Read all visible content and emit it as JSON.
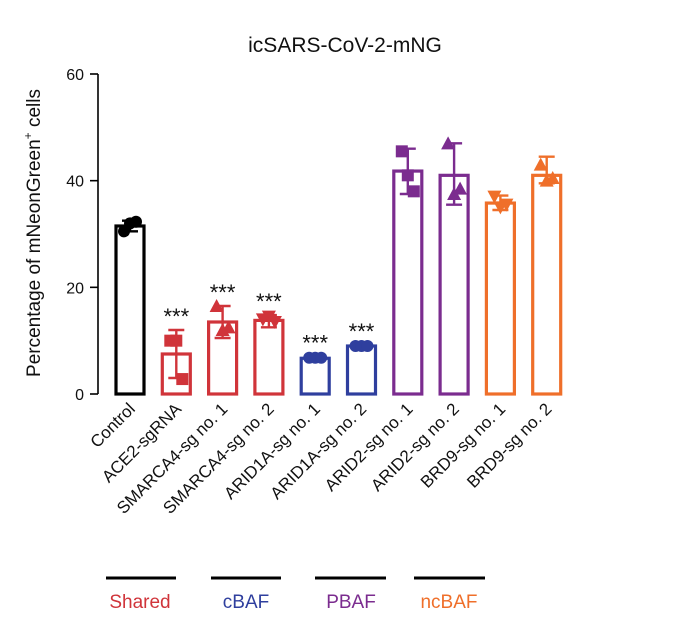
{
  "chart_data": {
    "type": "bar",
    "title": "icSARS-CoV-2-mNG",
    "ylabel": "Percentage of mNeonGreen",
    "ylabel_superscript": "+",
    "ylabel_suffix": " cells",
    "xlabel": "",
    "ylim": [
      0,
      60
    ],
    "yticks": [
      0,
      20,
      40,
      60
    ],
    "colors": {
      "black": "#000000",
      "red": "#d0343a",
      "blue": "#2f3f9e",
      "purple": "#7b2c8f",
      "orange": "#ef6f2a"
    },
    "bars": [
      {
        "category": "Control",
        "mean": 31.5,
        "err": [
          30.5,
          32.5
        ],
        "color": "black",
        "marker": "circle",
        "points": [
          30.5,
          32.0,
          32.3
        ],
        "sig": ""
      },
      {
        "category": "ACE2-sgRNA",
        "mean": 7.5,
        "err": [
          3.0,
          12.0
        ],
        "color": "red",
        "marker": "square",
        "points": [
          10.0,
          10.0,
          2.8
        ],
        "sig": "***"
      },
      {
        "category": "SMARCA4-sg no. 1",
        "mean": 13.5,
        "err": [
          10.5,
          16.5
        ],
        "color": "red",
        "marker": "triangle",
        "points": [
          16.5,
          12.0,
          12.5
        ],
        "sig": "***"
      },
      {
        "category": "SMARCA4-sg no. 2",
        "mean": 13.8,
        "err": [
          12.5,
          14.8
        ],
        "color": "red",
        "marker": "triangle-down",
        "points": [
          14.0,
          14.5,
          13.5
        ],
        "sig": "***"
      },
      {
        "category": "ARID1A-sg no. 1",
        "mean": 6.7,
        "err": [
          6.3,
          7.0
        ],
        "color": "blue",
        "marker": "circle",
        "points": [
          6.8,
          6.8,
          6.8
        ],
        "sig": "***"
      },
      {
        "category": "ARID1A-sg no. 2",
        "mean": 9.0,
        "err": [
          8.8,
          9.2
        ],
        "color": "blue",
        "marker": "circle",
        "points": [
          9.0,
          9.0,
          9.0
        ],
        "sig": "***"
      },
      {
        "category": "ARID2-sg no. 1",
        "mean": 41.8,
        "err": [
          37.5,
          46.0
        ],
        "color": "purple",
        "marker": "square",
        "points": [
          45.5,
          41.0,
          38.0
        ],
        "sig": ""
      },
      {
        "category": "ARID2-sg no. 2",
        "mean": 41.0,
        "err": [
          35.5,
          47.0
        ],
        "color": "purple",
        "marker": "triangle",
        "points": [
          47.0,
          37.5,
          38.5
        ],
        "sig": ""
      },
      {
        "category": "BRD9-sg no. 1",
        "mean": 35.8,
        "err": [
          34.5,
          37.2
        ],
        "color": "orange",
        "marker": "triangle-down",
        "points": [
          37.0,
          35.0,
          35.5
        ],
        "sig": ""
      },
      {
        "category": "BRD9-sg no. 2",
        "mean": 41.0,
        "err": [
          39.5,
          44.5
        ],
        "color": "orange",
        "marker": "triangle",
        "points": [
          43.0,
          40.0,
          40.5
        ],
        "sig": ""
      }
    ],
    "groups": [
      {
        "label": "Shared",
        "color": "#d0343a"
      },
      {
        "label": "cBAF",
        "color": "#2f3f9e"
      },
      {
        "label": "PBAF",
        "color": "#7b2c8f"
      },
      {
        "label": "ncBAF",
        "color": "#ef6f2a"
      }
    ]
  }
}
